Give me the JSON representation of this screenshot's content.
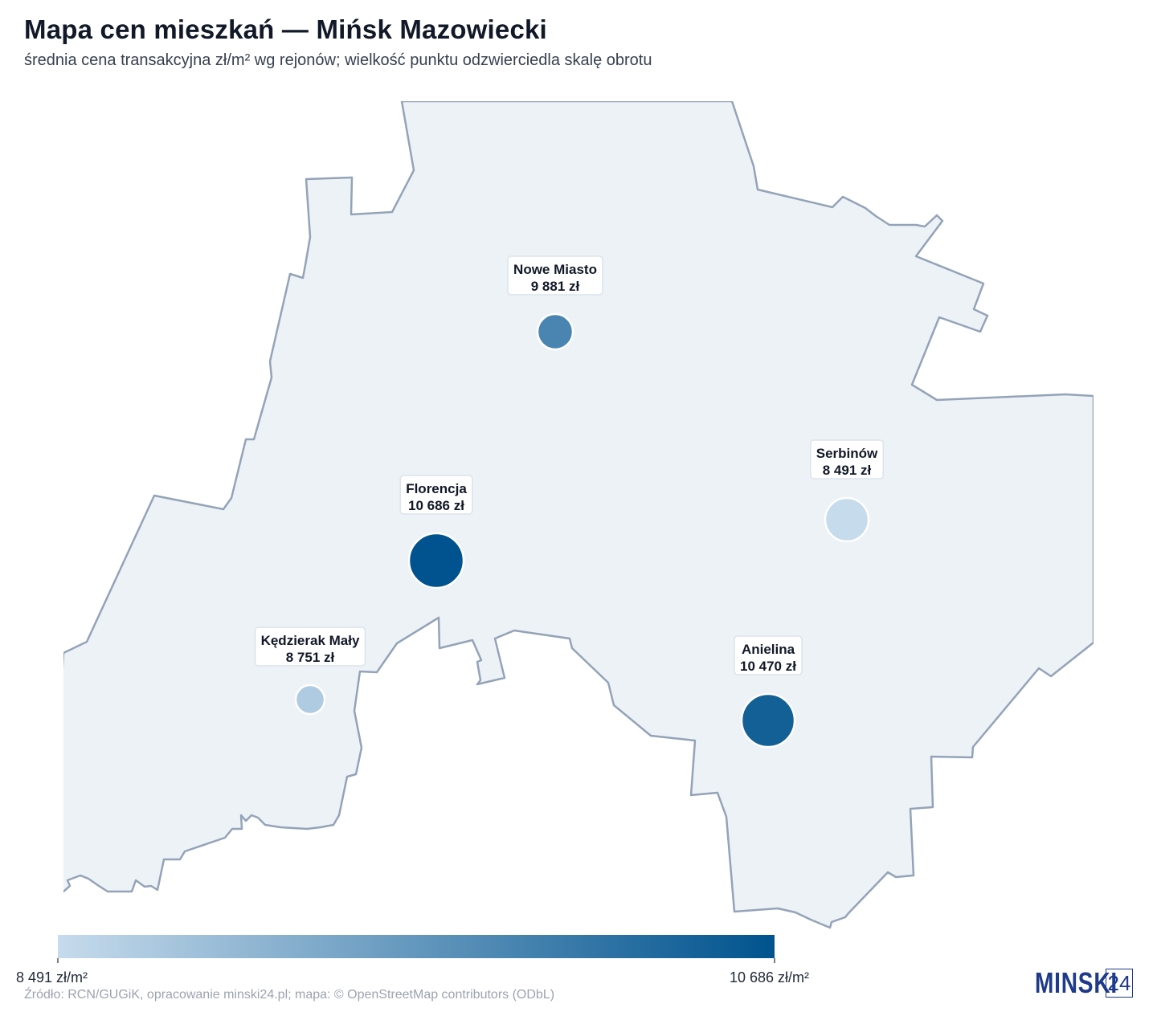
{
  "header": {
    "title": "Mapa cen mieszkań — Mińsk Mazowiecki",
    "subtitle": "średnia cena transakcyjna zł/m² wg rejonów; wielkość punktu odzwierciedla skalę obrotu"
  },
  "districts": [
    {
      "name": "Nowe Miasto",
      "price_label": "9 881 zł",
      "price": 9881
    },
    {
      "name": "Serbinów",
      "price_label": "8 491 zł",
      "price": 8491
    },
    {
      "name": "Florencja",
      "price_label": "10 686 zł",
      "price": 10686
    },
    {
      "name": "Kędzierak Mały",
      "price_label": "8 751 zł",
      "price": 8751
    },
    {
      "name": "Anielina",
      "price_label": "10 470 zł",
      "price": 10470
    }
  ],
  "legend": {
    "min_label": "8 491 zł/m²",
    "max_label": "10 686 zł/m²",
    "min_value": 8491,
    "max_value": 10686,
    "color_low": "#c6dbec",
    "color_high": "#00538e"
  },
  "colors": {
    "land_fill": "#edf2f7",
    "boundary": "#94a3b8"
  },
  "source": "Źródło: RCN/GUGiK, opracowanie minski24.pl; mapa: © OpenStreetMap contributors (ODbL)",
  "logo": {
    "text": "MINSKI",
    "number": "24"
  }
}
